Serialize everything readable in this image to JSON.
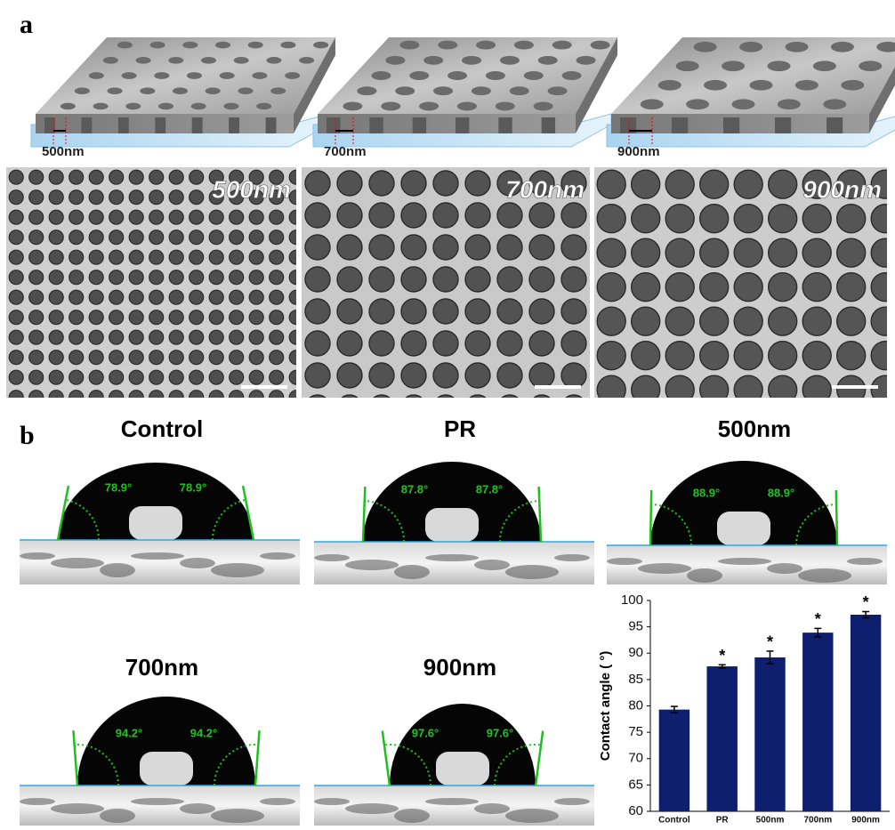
{
  "panel_a": {
    "label": "a",
    "schematics": [
      {
        "label": "500nm"
      },
      {
        "label": "700nm"
      },
      {
        "label": "900nm"
      }
    ],
    "sem": [
      {
        "label": "500nm"
      },
      {
        "label": "700nm"
      },
      {
        "label": "900nm"
      }
    ]
  },
  "panel_b": {
    "label": "b",
    "droplets": [
      {
        "title": "Control",
        "left_angle": "78.9°",
        "right_angle": "78.9°"
      },
      {
        "title": "PR",
        "left_angle": "87.8°",
        "right_angle": "87.8°"
      },
      {
        "title": "500nm",
        "left_angle": "88.9°",
        "right_angle": "88.9°"
      },
      {
        "title": "700nm",
        "left_angle": "94.2°",
        "right_angle": "94.2°"
      },
      {
        "title": "900nm",
        "left_angle": "97.6°",
        "right_angle": "97.6°"
      }
    ]
  },
  "chart_data": {
    "type": "bar",
    "y_label": "Contact angle ( °)",
    "categories": [
      "Control",
      "PR",
      "500nm",
      "700nm",
      "900nm"
    ],
    "values": [
      79.3,
      87.5,
      89.2,
      93.9,
      97.3
    ],
    "errors": [
      0.6,
      0.3,
      1.2,
      0.8,
      0.6
    ],
    "significant": [
      false,
      true,
      true,
      true,
      true
    ],
    "annotation": "*",
    "color": "#0e1f6f",
    "ylim": [
      60,
      100
    ],
    "yticks": [
      60,
      65,
      70,
      75,
      80,
      85,
      90,
      95,
      100
    ]
  }
}
